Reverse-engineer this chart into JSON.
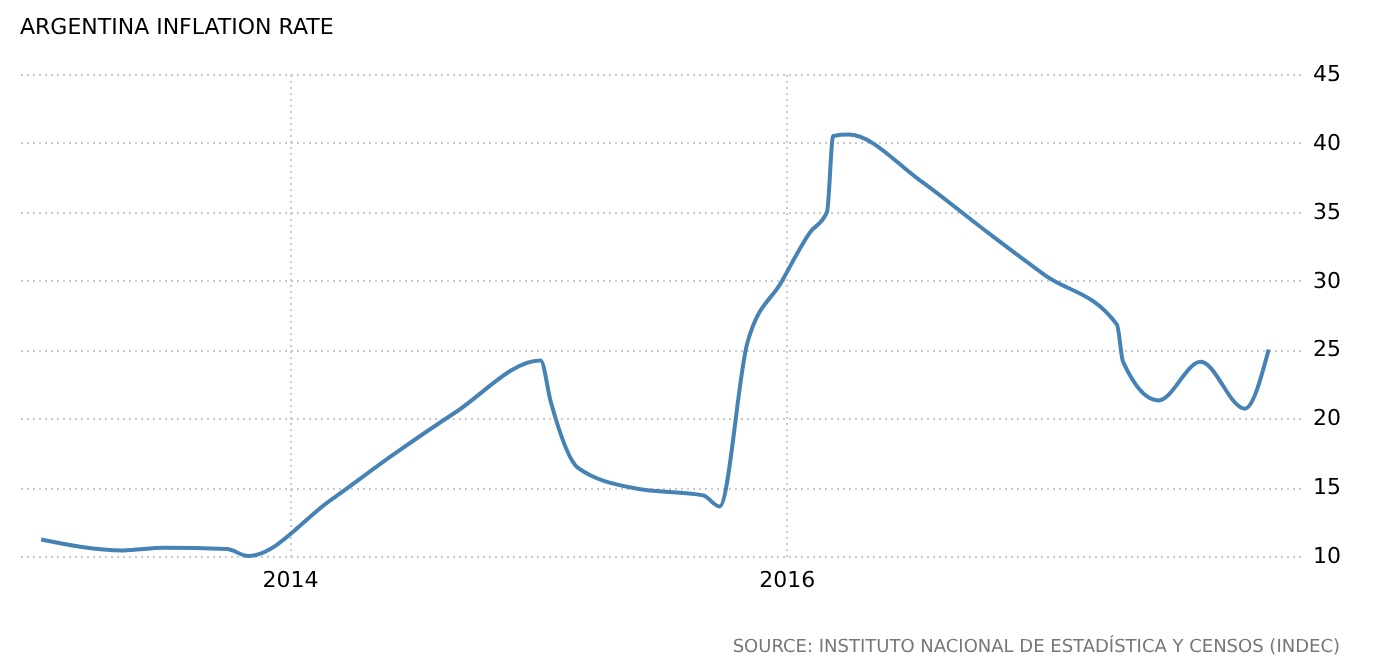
{
  "chart_data": {
    "type": "line",
    "title": "ARGENTINA INFLATION RATE",
    "annotations": [
      "SOURCE: INSTITUTO NACIONAL DE ESTADÍSTICA Y CENSOS (INDEC)"
    ],
    "x": [
      "2013-01-01",
      "2013-05-01",
      "2013-07-01",
      "2013-10-01",
      "2013-11-01",
      "2014-03-01",
      "2014-06-01",
      "2014-09-01",
      "2015-01-05",
      "2015-01-20",
      "2015-03-01",
      "2015-05-25",
      "2015-09-01",
      "2015-09-25",
      "2015-11-05",
      "2015-12-25",
      "2016-02-05",
      "2016-03-01",
      "2016-03-10",
      "2016-04-01",
      "2016-07-15",
      "2016-10-15",
      "2017-01-15",
      "2017-05-01",
      "2017-05-10",
      "2017-07-01",
      "2017-09-01",
      "2017-11-05",
      "2017-12-10"
    ],
    "series": [
      {
        "color": "#4682b4",
        "values": [
          11.2,
          10.4,
          10.6,
          10.5,
          10.0,
          14.0,
          17.3,
          20.4,
          24.2,
          21.2,
          16.4,
          14.9,
          14.4,
          13.6,
          25.5,
          29.9,
          33.5,
          35.0,
          40.5,
          40.6,
          37.3,
          33.8,
          30.4,
          26.8,
          24.1,
          21.3,
          24.1,
          20.7,
          25.0
        ]
      }
    ],
    "xlim": [
      "2012-12-01",
      "2018-01-25"
    ],
    "xticks": [
      "2014",
      "2016"
    ],
    "ylim": [
      10,
      45
    ],
    "yticks": [
      10,
      15,
      20,
      25,
      30,
      35,
      40,
      45
    ],
    "grid": true,
    "legend": false,
    "marker": "none",
    "line_style": "solid"
  }
}
